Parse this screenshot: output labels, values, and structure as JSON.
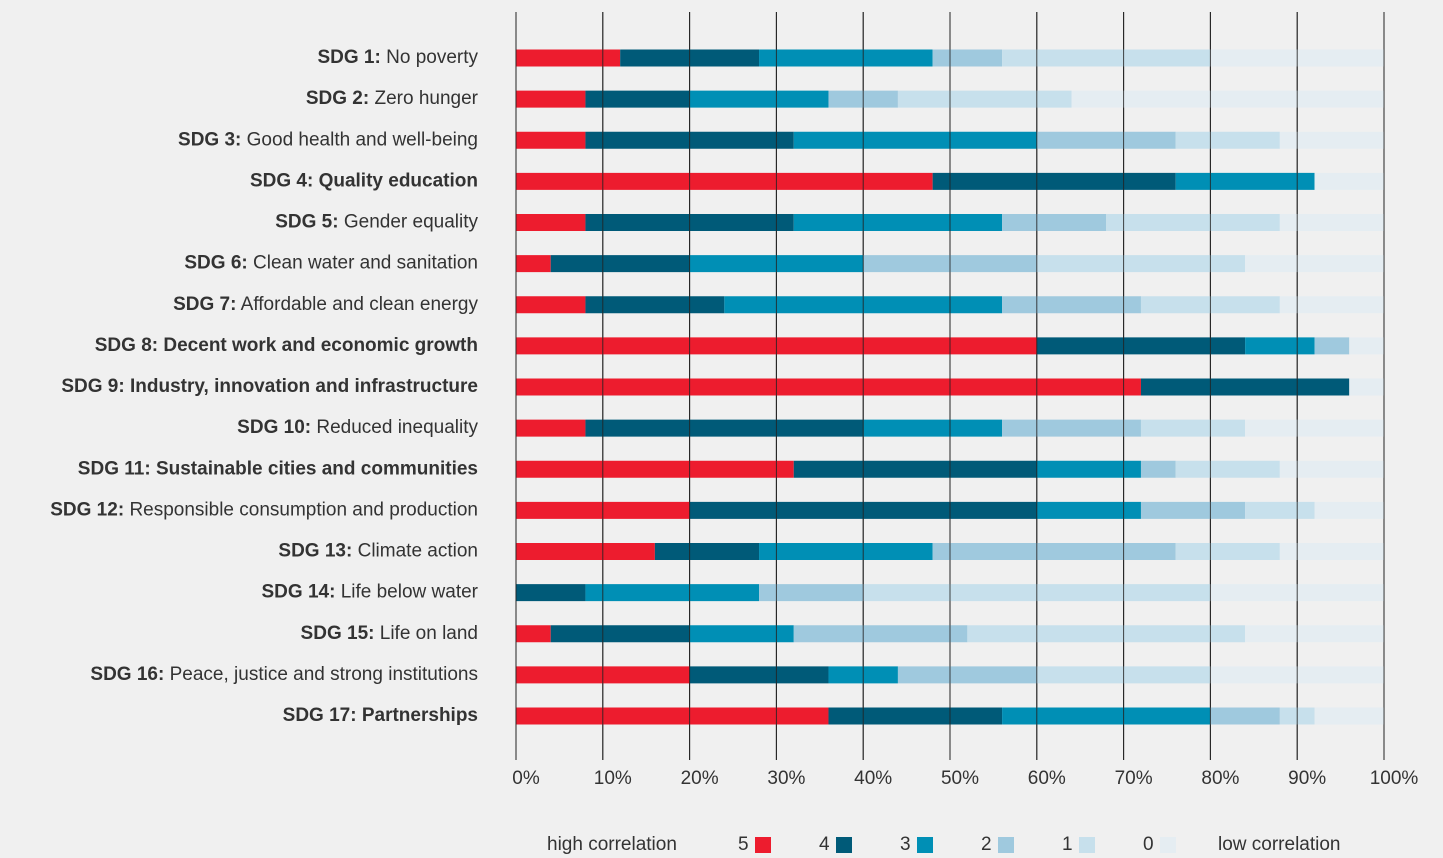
{
  "chart_data": {
    "type": "stacked_bar_horizontal",
    "categories": [
      {
        "code": "SDG 1:",
        "name": "No poverty"
      },
      {
        "code": "SDG 2:",
        "name": "Zero hunger"
      },
      {
        "code": "SDG 3:",
        "name": "Good health and well-being"
      },
      {
        "code": "SDG 4:",
        "name": "Quality education"
      },
      {
        "code": "SDG 5:",
        "name": "Gender equality"
      },
      {
        "code": "SDG 6:",
        "name": "Clean water and sanitation"
      },
      {
        "code": "SDG 7:",
        "name": "Affordable and clean energy"
      },
      {
        "code": "SDG 8:",
        "name": "Decent work and economic growth"
      },
      {
        "code": "SDG 9:",
        "name": "Industry, innovation and infrastructure"
      },
      {
        "code": "SDG 10:",
        "name": "Reduced inequality"
      },
      {
        "code": "SDG 11:",
        "name": "Sustainable cities and communities"
      },
      {
        "code": "SDG 12:",
        "name": "Responsible consumption and production"
      },
      {
        "code": "SDG 13:",
        "name": "Climate action"
      },
      {
        "code": "SDG 14:",
        "name": "Life below water"
      },
      {
        "code": "SDG 15:",
        "name": "Life on land"
      },
      {
        "code": "SDG 16:",
        "name": "Peace, justice and strong institutions"
      },
      {
        "code": "SDG 17:",
        "name": "Partnerships"
      }
    ],
    "highlight": [
      false,
      false,
      false,
      true,
      false,
      false,
      false,
      true,
      true,
      false,
      true,
      false,
      false,
      false,
      false,
      false,
      true
    ],
    "series": [
      {
        "name": "5",
        "color": "#ed1c2e",
        "values": [
          12,
          8,
          8,
          48,
          8,
          4,
          8,
          60,
          72,
          8,
          32,
          20,
          16,
          0,
          4,
          20,
          36
        ]
      },
      {
        "name": "4",
        "color": "#005a78",
        "values": [
          16,
          12,
          24,
          28,
          24,
          16,
          16,
          24,
          24,
          32,
          28,
          40,
          12,
          8,
          16,
          16,
          20
        ]
      },
      {
        "name": "3",
        "color": "#008fb5",
        "values": [
          20,
          16,
          28,
          16,
          24,
          20,
          32,
          8,
          0,
          16,
          12,
          12,
          20,
          20,
          12,
          8,
          24
        ]
      },
      {
        "name": "2",
        "color": "#9fc9de",
        "values": [
          8,
          8,
          16,
          0,
          12,
          20,
          16,
          4,
          0,
          16,
          4,
          12,
          28,
          12,
          20,
          16,
          8
        ]
      },
      {
        "name": "1",
        "color": "#c7e0ec",
        "values": [
          24,
          20,
          12,
          0,
          20,
          24,
          16,
          0,
          0,
          12,
          12,
          8,
          12,
          40,
          32,
          20,
          4
        ]
      },
      {
        "name": "0",
        "color": "#e5edf2",
        "values": [
          20,
          36,
          12,
          8,
          12,
          16,
          12,
          4,
          4,
          16,
          12,
          8,
          12,
          20,
          16,
          20,
          8
        ]
      }
    ],
    "legend_left": "high correlation",
    "legend_right": "low correlation",
    "xlim": [
      0,
      100
    ],
    "xticks": [
      {
        "value": 0,
        "label": "0%"
      },
      {
        "value": 10,
        "label": "10%"
      },
      {
        "value": 20,
        "label": "20%"
      },
      {
        "value": 30,
        "label": "30%"
      },
      {
        "value": 40,
        "label": "40%"
      },
      {
        "value": 50,
        "label": "50%"
      },
      {
        "value": 60,
        "label": "60%"
      },
      {
        "value": 70,
        "label": "70%"
      },
      {
        "value": 80,
        "label": "80%"
      },
      {
        "value": 90,
        "label": "90%"
      },
      {
        "value": 100,
        "label": "100%"
      }
    ],
    "grid": true
  }
}
